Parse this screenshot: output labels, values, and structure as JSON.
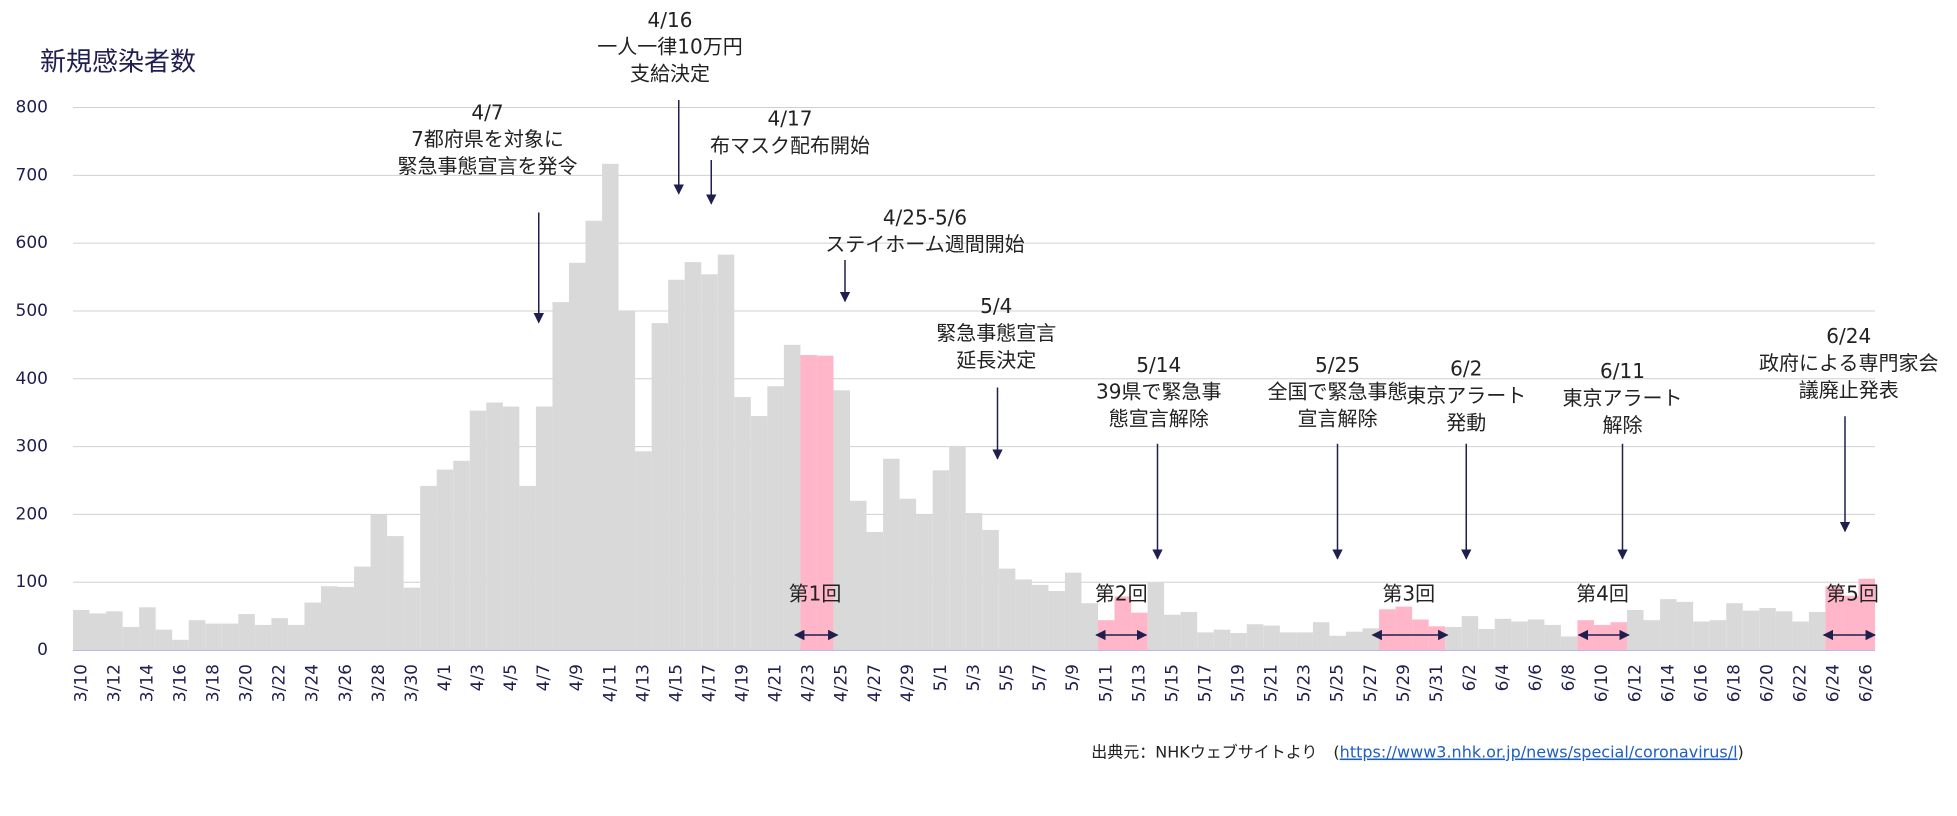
{
  "chart_data": {
    "type": "bar",
    "title": "新規感染者数",
    "categories": [
      "3/10",
      null,
      "3/12",
      null,
      "3/14",
      null,
      "3/16",
      null,
      "3/18",
      null,
      "3/20",
      null,
      "3/22",
      null,
      "3/24",
      null,
      "3/26",
      null,
      "3/28",
      null,
      "3/30",
      null,
      "4/1",
      null,
      "4/3",
      null,
      "4/5",
      null,
      "4/7",
      null,
      "4/9",
      null,
      "4/11",
      null,
      "4/13",
      null,
      "4/15",
      null,
      "4/17",
      null,
      "4/19",
      null,
      "4/21",
      null,
      "4/23",
      null,
      "4/25",
      null,
      "4/27",
      null,
      "4/29",
      null,
      "5/1",
      null,
      "5/3",
      null,
      "5/5",
      null,
      "5/7",
      null,
      "5/9",
      null,
      "5/11",
      null,
      "5/13",
      null,
      "5/15",
      null,
      "5/17",
      null,
      "5/19",
      null,
      "5/21",
      null,
      "5/23",
      null,
      "5/25",
      null,
      "5/27",
      null,
      "5/29",
      null,
      "5/31",
      null,
      "6/2",
      null,
      "6/4",
      null,
      "6/6",
      null,
      "6/8",
      null,
      "6/10",
      null,
      "6/12",
      null,
      "6/14",
      null,
      "6/16",
      null,
      "6/18",
      null,
      "6/20",
      null,
      "6/22",
      null,
      "6/24",
      null,
      "6/26"
    ],
    "values": [
      59,
      54,
      57,
      34,
      63,
      30,
      15,
      44,
      39,
      39,
      53,
      37,
      47,
      37,
      70,
      94,
      93,
      123,
      200,
      168,
      92,
      242,
      266,
      279,
      353,
      365,
      359,
      242,
      359,
      513,
      571,
      633,
      717,
      500,
      293,
      482,
      546,
      572,
      554,
      583,
      373,
      345,
      389,
      450,
      435,
      434,
      383,
      220,
      174,
      282,
      223,
      200,
      265,
      301,
      202,
      177,
      120,
      104,
      96,
      87,
      114,
      69,
      44,
      79,
      55,
      99,
      52,
      56,
      26,
      30,
      25,
      38,
      36,
      26,
      26,
      41,
      21,
      27,
      32,
      60,
      64,
      45,
      35,
      34,
      50,
      31,
      46,
      42,
      45,
      37,
      20,
      44,
      37,
      41,
      59,
      44,
      75,
      71,
      42,
      44,
      69,
      58,
      62,
      57,
      42,
      56,
      94,
      80,
      105
    ],
    "colors": [
      "#d9d9d9",
      "#d9d9d9",
      "#d9d9d9",
      "#d9d9d9",
      "#d9d9d9",
      "#d9d9d9",
      "#d9d9d9",
      "#d9d9d9",
      "#d9d9d9",
      "#d9d9d9",
      "#d9d9d9",
      "#d9d9d9",
      "#d9d9d9",
      "#d9d9d9",
      "#d9d9d9",
      "#d9d9d9",
      "#d9d9d9",
      "#d9d9d9",
      "#d9d9d9",
      "#d9d9d9",
      "#d9d9d9",
      "#d9d9d9",
      "#d9d9d9",
      "#d9d9d9",
      "#d9d9d9",
      "#d9d9d9",
      "#d9d9d9",
      "#d9d9d9",
      "#d9d9d9",
      "#d9d9d9",
      "#d9d9d9",
      "#d9d9d9",
      "#d9d9d9",
      "#d9d9d9",
      "#d9d9d9",
      "#d9d9d9",
      "#d9d9d9",
      "#d9d9d9",
      "#d9d9d9",
      "#d9d9d9",
      "#d9d9d9",
      "#d9d9d9",
      "#d9d9d9",
      "#d9d9d9",
      "#ffb6c8",
      "#ffb6c8",
      "#d9d9d9",
      "#d9d9d9",
      "#d9d9d9",
      "#d9d9d9",
      "#d9d9d9",
      "#d9d9d9",
      "#d9d9d9",
      "#d9d9d9",
      "#d9d9d9",
      "#d9d9d9",
      "#d9d9d9",
      "#d9d9d9",
      "#d9d9d9",
      "#d9d9d9",
      "#d9d9d9",
      "#d9d9d9",
      "#ffb6c8",
      "#ffb6c8",
      "#ffb6c8",
      "#d9d9d9",
      "#d9d9d9",
      "#d9d9d9",
      "#d9d9d9",
      "#d9d9d9",
      "#d9d9d9",
      "#d9d9d9",
      "#d9d9d9",
      "#d9d9d9",
      "#d9d9d9",
      "#d9d9d9",
      "#d9d9d9",
      "#d9d9d9",
      "#d9d9d9",
      "#ffb6c8",
      "#ffb6c8",
      "#ffb6c8",
      "#ffb6c8",
      "#d9d9d9",
      "#d9d9d9",
      "#d9d9d9",
      "#d9d9d9",
      "#d9d9d9",
      "#d9d9d9",
      "#d9d9d9",
      "#d9d9d9",
      "#ffb6c8",
      "#ffb6c8",
      "#ffb6c8",
      "#d9d9d9",
      "#d9d9d9",
      "#d9d9d9",
      "#d9d9d9",
      "#d9d9d9",
      "#d9d9d9",
      "#d9d9d9",
      "#d9d9d9",
      "#d9d9d9",
      "#d9d9d9",
      "#d9d9d9",
      "#d9d9d9",
      "#ffb6c8",
      "#ffb6c8",
      "#ffb6c8"
    ],
    "ylim": [
      0,
      800
    ],
    "yticks": [
      0,
      100,
      200,
      300,
      400,
      500,
      600,
      700,
      800
    ],
    "grid": true,
    "annotations": [
      {
        "lines": [
          "4/7",
          "7都府県を対象に",
          "緊急事態宣言を発令"
        ]
      },
      {
        "lines": [
          "4/16",
          "一人一律10万円",
          "支給決定"
        ]
      },
      {
        "lines": [
          "4/17",
          "布マスク配布開始"
        ]
      },
      {
        "lines": [
          "4/25-5/6",
          "ステイホーム週間開始"
        ]
      },
      {
        "lines": [
          "5/4",
          "緊急事態宣言",
          "延長決定"
        ]
      },
      {
        "lines": [
          "5/14",
          "39県で緊急事",
          "態宣言解除"
        ]
      },
      {
        "lines": [
          "5/25",
          "全国で緊急事態",
          "宣言解除"
        ]
      },
      {
        "lines": [
          "6/2",
          "東京アラート",
          "発動"
        ]
      },
      {
        "lines": [
          "6/11",
          "東京アラート",
          "解除"
        ]
      },
      {
        "lines": [
          "6/24",
          "政府による専門家会",
          "議廃止発表"
        ]
      }
    ],
    "rounds": [
      "第1回",
      "第2回",
      "第3回",
      "第4回",
      "第5回"
    ],
    "source": "出典元：NHKウェブサイトより　(",
    "source_url": "https://www3.nhk.or.jp/news/special/coronavirus/l",
    "source_close": ")"
  }
}
